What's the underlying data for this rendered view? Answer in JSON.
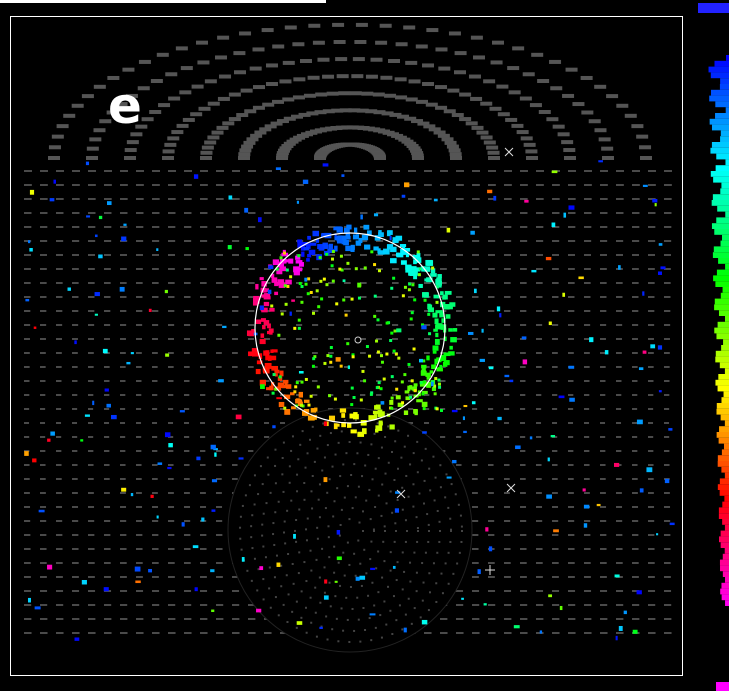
{
  "panel": {
    "label": "e"
  }
}
